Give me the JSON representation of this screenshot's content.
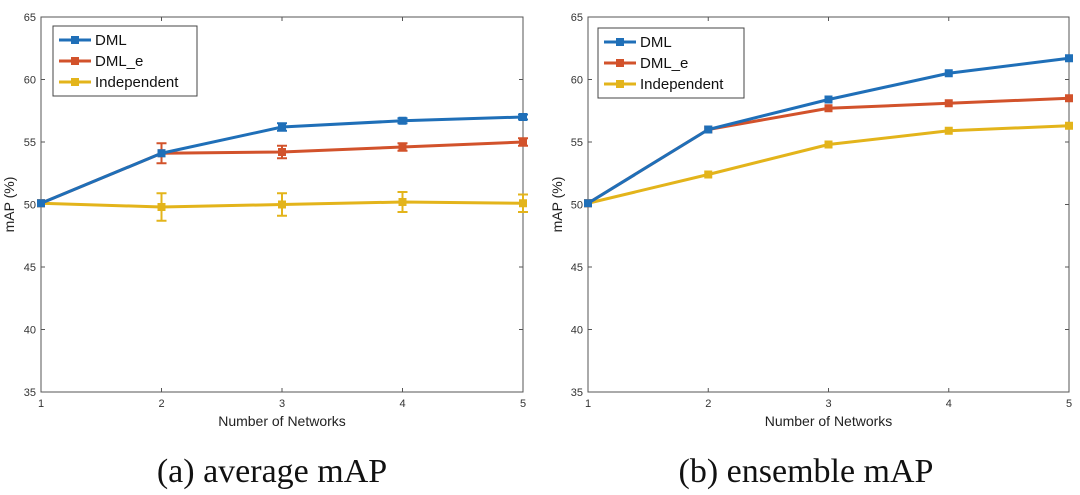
{
  "chart_data": [
    {
      "type": "line",
      "id": "avg",
      "caption": "(a) average mAP",
      "xlabel": "Number of Networks",
      "ylabel": "mAP (%)",
      "x": [
        1,
        2,
        3,
        4,
        5
      ],
      "xticks": [
        "1",
        "2",
        "3",
        "4",
        "5"
      ],
      "yticks": [
        "35",
        "40",
        "45",
        "50",
        "55",
        "60",
        "65"
      ],
      "xlim": [
        1,
        5
      ],
      "ylim": [
        35,
        65
      ],
      "legend_position": "top-left",
      "series": [
        {
          "name": "DML",
          "color": "#1f6fb8",
          "values": [
            50.1,
            54.1,
            56.2,
            56.7,
            57.0
          ],
          "errors": [
            0,
            0,
            0.3,
            0.2,
            0.2
          ]
        },
        {
          "name": "DML_e",
          "color": "#d2522b",
          "values": [
            50.1,
            54.1,
            54.2,
            54.6,
            55.0
          ],
          "errors": [
            0,
            0.8,
            0.5,
            0.3,
            0.3
          ]
        },
        {
          "name": "Independent",
          "color": "#e3b41b",
          "values": [
            50.1,
            49.8,
            50.0,
            50.2,
            50.1
          ],
          "errors": [
            0,
            1.1,
            0.9,
            0.8,
            0.7
          ]
        }
      ]
    },
    {
      "type": "line",
      "id": "ens",
      "caption": "(b) ensemble mAP",
      "xlabel": "Number of Networks",
      "ylabel": "mAP (%)",
      "x": [
        1,
        2,
        3,
        4,
        5
      ],
      "xticks": [
        "1",
        "2",
        "3",
        "4",
        "5"
      ],
      "yticks": [
        "35",
        "40",
        "45",
        "50",
        "55",
        "60",
        "65"
      ],
      "xlim": [
        1,
        5
      ],
      "ylim": [
        35,
        65
      ],
      "legend_position": "top-left",
      "series": [
        {
          "name": "DML",
          "color": "#1f6fb8",
          "values": [
            50.1,
            56.0,
            58.4,
            60.5,
            61.7
          ],
          "errors": [
            0,
            0,
            0,
            0,
            0
          ]
        },
        {
          "name": "DML_e",
          "color": "#d2522b",
          "values": [
            50.1,
            56.0,
            57.7,
            58.1,
            58.5
          ],
          "errors": [
            0,
            0,
            0,
            0,
            0
          ]
        },
        {
          "name": "Independent",
          "color": "#e3b41b",
          "values": [
            50.1,
            52.4,
            54.8,
            55.9,
            56.3
          ],
          "errors": [
            0,
            0,
            0,
            0,
            0
          ]
        }
      ]
    }
  ]
}
